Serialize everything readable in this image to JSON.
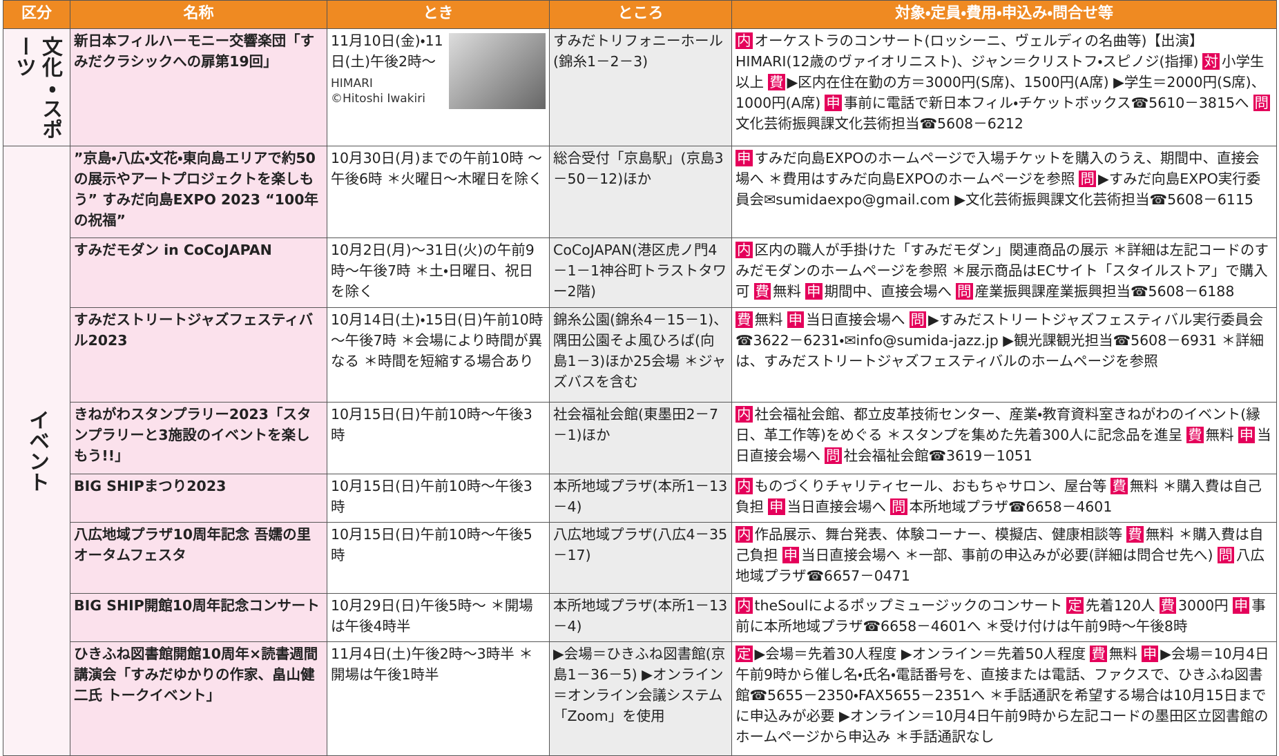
{
  "header": [
    "区分",
    "名称",
    "とき",
    "ところ",
    "対象・定員・費用・申込み・問合せ等"
  ],
  "sections": [
    {
      "category": "文化・スポーツ",
      "rows": [
        {
          "name": "新日本フィルハーモニー交響楽団「すみだクラシックへの扉第19回」",
          "when": "11月10日(金)・11日(土)午後2時～",
          "caption": [
            "HIMARI",
            "©Hitoshi Iwakiri"
          ],
          "where": "すみだトリフォニーホール(錦糸1－2－3)",
          "details": [
            {
              "tag": "内",
              "text": "オーケストラのコンサート(ロッシーニ、ヴェルディの名曲等)【出演】HIMARI(12歳のヴァイオリニスト)、ジャン＝クリストフ・スピノジ(指揮)"
            },
            {
              "tag": "対",
              "text": "小学生以上"
            },
            {
              "tag": "費",
              "text": "▶区内在住在勤の方＝3000円(S席)、1500円(A席) ▶学生＝2000円(S席)、1000円(A席)"
            },
            {
              "tag": "申",
              "text": "事前に電話で新日本フィル・チケットボックス☎5610－3815へ"
            },
            {
              "tag": "問",
              "text": "文化芸術振興課文化芸術担当☎5608－6212"
            }
          ]
        }
      ]
    },
    {
      "category": "イベント",
      "rows": [
        {
          "name": "”京島・八広・文花・東向島エリアで約50の展示やアートプロジェクトを楽しもう” すみだ向島EXPO 2023 “100年の祝福”",
          "when": "10月30日(月)までの午前10時 ～ 午後6時 ＊火曜日～木曜日を除く",
          "where": "総合受付「京島駅」(京島3－50－12)ほか",
          "details": [
            {
              "tag": "申",
              "text": "すみだ向島EXPOのホームページで入場チケットを購入のうえ、期間中、直接会場へ ＊費用はすみだ向島EXPOのホームページを参照"
            },
            {
              "tag": "問",
              "text": "▶すみだ向島EXPO実行委員会✉sumidaexpo@gmail.com ▶文化芸術振興課文化芸術担当☎5608－6115"
            }
          ]
        },
        {
          "name": "すみだモダン in CoCoJAPAN",
          "when": "10月2日(月)～31日(火)の午前9時～午後7時 ＊土・日曜日、祝日を除く",
          "where": "CoCoJAPAN(港区虎ノ門4－1－1神谷町トラストタワー2階)",
          "details": [
            {
              "tag": "内",
              "text": "区内の職人が手掛けた「すみだモダン」関連商品の展示 ＊詳細は左記コードのすみだモダンのホームページを参照 ＊展示商品はECサイト「スタイルストア」で購入可"
            },
            {
              "tag": "費",
              "text": "無料"
            },
            {
              "tag": "申",
              "text": "期間中、直接会場へ"
            },
            {
              "tag": "問",
              "text": "産業振興課産業振興担当☎5608－6188"
            }
          ]
        },
        {
          "name": "すみだストリートジャズフェスティバル2023",
          "when": "10月14日(土)・15日(日)午前10時～午後7時 ＊会場により時間が異なる ＊時間を短縮する場合あり",
          "where": "錦糸公園(錦糸4－15－1)、隅田公園そよ風ひろば(向島1－3)ほか25会場 ＊ジャズバスを含む",
          "details": [
            {
              "tag": "費",
              "text": "無料"
            },
            {
              "tag": "申",
              "text": "当日直接会場へ"
            },
            {
              "tag": "問",
              "text": "▶すみだストリートジャズフェスティバル実行委員会☎3622－6231・✉info@sumida-jazz.jp ▶観光課観光担当☎5608－6931 ＊詳細は、すみだストリートジャズフェスティバルのホームページを参照"
            }
          ]
        },
        {
          "name": "きねがわスタンプラリー2023「スタンプラリーと3施設のイベントを楽しもう!!」",
          "when": "10月15日(日)午前10時～午後3時",
          "where": "社会福祉会館(東墨田2－7－1)ほか",
          "details": [
            {
              "tag": "内",
              "text": "社会福祉会館、都立皮革技術センター、産業・教育資料室きねがわのイベント(縁日、革工作等)をめぐる ＊スタンプを集めた先着300人に記念品を進呈"
            },
            {
              "tag": "費",
              "text": "無料"
            },
            {
              "tag": "申",
              "text": "当日直接会場へ"
            },
            {
              "tag": "問",
              "text": "社会福祉会館☎3619－1051"
            }
          ]
        },
        {
          "name": "BIG SHIPまつり2023",
          "when": "10月15日(日)午前10時～午後3時",
          "where": "本所地域プラザ(本所1－13－4)",
          "details": [
            {
              "tag": "内",
              "text": "ものづくりチャリティセール、おもちゃサロン、屋台等"
            },
            {
              "tag": "費",
              "text": "無料 ＊購入費は自己負担"
            },
            {
              "tag": "申",
              "text": "当日直接会場へ"
            },
            {
              "tag": "問",
              "text": "本所地域プラザ☎6658－4601"
            }
          ]
        },
        {
          "name": "八広地域プラザ10周年記念 吾嬬の里オータムフェスタ",
          "when": "10月15日(日)午前10時～午後5時",
          "where": "八広地域プラザ(八広4－35－17)",
          "details": [
            {
              "tag": "内",
              "text": "作品展示、舞台発表、体験コーナー、模擬店、健康相談等"
            },
            {
              "tag": "費",
              "text": "無料 ＊購入費は自己負担"
            },
            {
              "tag": "申",
              "text": "当日直接会場へ ＊一部、事前の申込みが必要(詳細は問合せ先へ)"
            },
            {
              "tag": "問",
              "text": "八広地域プラザ☎6657－0471"
            }
          ]
        },
        {
          "name": "BIG SHIP開館10周年記念コンサート",
          "when": "10月29日(日)午後5時～ ＊開場は午後4時半",
          "where": "本所地域プラザ(本所1－13－4)",
          "details": [
            {
              "tag": "内",
              "text": "theSoulによるポップミュージックのコンサート"
            },
            {
              "tag": "定",
              "text": "先着120人"
            },
            {
              "tag": "費",
              "text": "3000円"
            },
            {
              "tag": "申",
              "text": "事前に本所地域プラザ☎6658－4601へ ＊受け付けは午前9時～午後8時"
            }
          ]
        },
        {
          "name": "ひきふね図書館開館10周年×読書週間講演会「すみだゆかりの作家、畠山健二氏 トークイベント」",
          "when": "11月4日(土)午後2時～3時半 ＊開場は午後1時半",
          "where": "▶会場＝ひきふね図書館(京島1－36－5) ▶オンライン＝オンライン会議システム「Zoom」を使用",
          "details": [
            {
              "tag": "定",
              "text": "▶会場＝先着30人程度 ▶オンライン＝先着50人程度"
            },
            {
              "tag": "費",
              "text": "無料"
            },
            {
              "tag": "申",
              "text": "▶会場＝10月4日午前9時から催し名・氏名・電話番号を、直接または電話、ファクスで、ひきふね図書館☎5655－2350・FAX5655－2351へ ＊手話通訳を希望する場合は10月15日までに申込みが必要 ▶オンライン＝10月4日午前9時から左記コードの墨田区立図書館のホームページから申込み ＊手話通訳なし"
            }
          ]
        }
      ]
    }
  ]
}
